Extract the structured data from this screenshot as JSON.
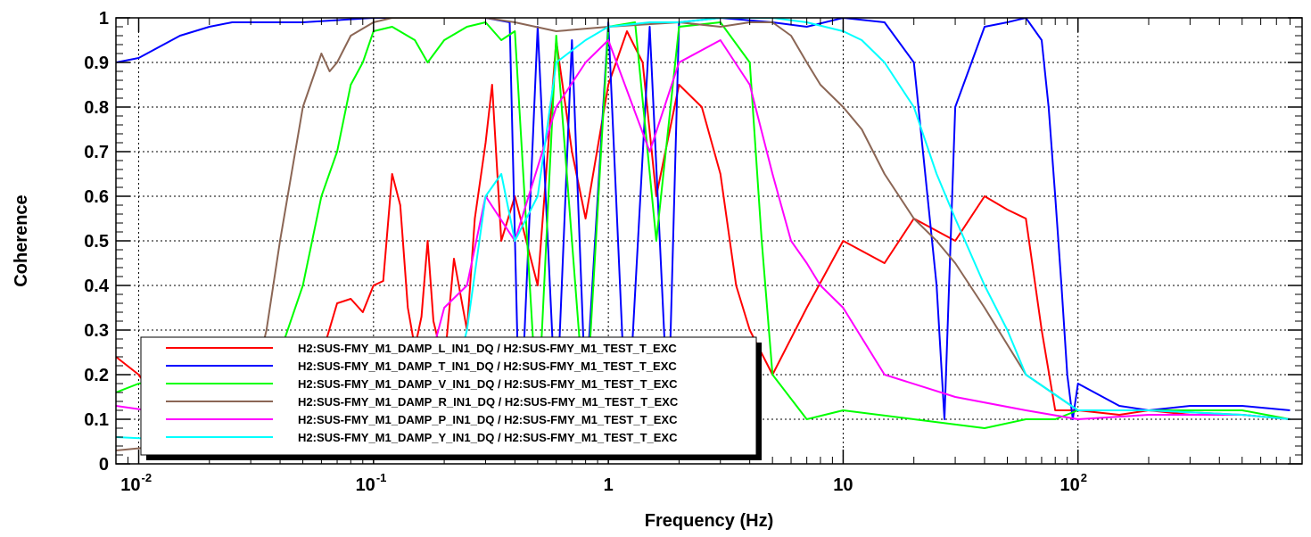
{
  "chart_data": {
    "type": "line",
    "title": "",
    "xlabel": "Frequency (Hz)",
    "ylabel": "Coherence",
    "x_scale": "log",
    "xlim": [
      0.008,
      900
    ],
    "ylim": [
      0,
      1
    ],
    "grid": true,
    "legend_position": "bottom-left",
    "y_ticks": [
      {
        "value": 0,
        "label": "0"
      },
      {
        "value": 0.1,
        "label": "0.1"
      },
      {
        "value": 0.2,
        "label": "0.2"
      },
      {
        "value": 0.3,
        "label": "0.3"
      },
      {
        "value": 0.4,
        "label": "0.4"
      },
      {
        "value": 0.5,
        "label": "0.5"
      },
      {
        "value": 0.6,
        "label": "0.6"
      },
      {
        "value": 0.7,
        "label": "0.7"
      },
      {
        "value": 0.8,
        "label": "0.8"
      },
      {
        "value": 0.9,
        "label": "0.9"
      },
      {
        "value": 1,
        "label": "1"
      }
    ],
    "x_ticks": [
      {
        "value": 0.01,
        "base": "10",
        "exp": "-2"
      },
      {
        "value": 0.1,
        "base": "10",
        "exp": "-1"
      },
      {
        "value": 1,
        "base": "1",
        "exp": ""
      },
      {
        "value": 10,
        "base": "10",
        "exp": ""
      },
      {
        "value": 100,
        "base": "10",
        "exp": "2"
      }
    ],
    "series": [
      {
        "name": "H2:SUS-FMY_M1_DAMP_L_IN1_DQ / H2:SUS-FMY_M1_TEST_T_EXC",
        "color": "#ff0000",
        "x": [
          0.008,
          0.01,
          0.012,
          0.015,
          0.02,
          0.03,
          0.05,
          0.07,
          0.08,
          0.09,
          0.1,
          0.11,
          0.12,
          0.13,
          0.14,
          0.15,
          0.16,
          0.17,
          0.18,
          0.2,
          0.22,
          0.25,
          0.27,
          0.3,
          0.32,
          0.35,
          0.4,
          0.5,
          0.6,
          0.7,
          0.8,
          1.0,
          1.2,
          1.4,
          1.6,
          2.0,
          2.5,
          3.0,
          3.5,
          4.0,
          5.0,
          7.0,
          10,
          15,
          20,
          30,
          40,
          50,
          60,
          70,
          80,
          100,
          150,
          200,
          300,
          500,
          800
        ],
        "y": [
          0.24,
          0.2,
          0.14,
          0.1,
          0.05,
          0.03,
          0.1,
          0.36,
          0.37,
          0.34,
          0.4,
          0.41,
          0.65,
          0.58,
          0.35,
          0.26,
          0.33,
          0.5,
          0.32,
          0.22,
          0.46,
          0.3,
          0.55,
          0.72,
          0.85,
          0.5,
          0.6,
          0.4,
          0.95,
          0.7,
          0.55,
          0.85,
          0.97,
          0.9,
          0.6,
          0.85,
          0.8,
          0.65,
          0.4,
          0.3,
          0.2,
          0.35,
          0.5,
          0.45,
          0.55,
          0.5,
          0.6,
          0.57,
          0.55,
          0.3,
          0.12,
          0.12,
          0.11,
          0.12,
          0.11,
          0.11,
          0.1
        ]
      },
      {
        "name": "H2:SUS-FMY_M1_DAMP_T_IN1_DQ / H2:SUS-FMY_M1_TEST_T_EXC",
        "color": "#0000ff",
        "x": [
          0.008,
          0.01,
          0.015,
          0.02,
          0.025,
          0.03,
          0.05,
          0.1,
          0.2,
          0.3,
          0.38,
          0.42,
          0.5,
          0.6,
          0.7,
          0.8,
          1.0,
          1.2,
          1.5,
          1.8,
          2.0,
          3.0,
          5.0,
          7.0,
          10,
          15,
          20,
          25,
          27,
          30,
          40,
          50,
          60,
          70,
          75,
          80,
          85,
          90,
          95,
          100,
          150,
          200,
          300,
          500,
          800
        ],
        "y": [
          0.9,
          0.91,
          0.96,
          0.98,
          0.99,
          0.99,
          0.99,
          1.0,
          1.0,
          1.0,
          0.99,
          0.05,
          0.98,
          0.1,
          0.95,
          0.15,
          0.99,
          0.05,
          0.98,
          0.1,
          0.99,
          1.0,
          0.99,
          0.98,
          1.0,
          0.99,
          0.9,
          0.4,
          0.1,
          0.8,
          0.98,
          0.99,
          1.0,
          0.95,
          0.8,
          0.6,
          0.4,
          0.2,
          0.1,
          0.18,
          0.13,
          0.12,
          0.13,
          0.13,
          0.12
        ]
      },
      {
        "name": "H2:SUS-FMY_M1_DAMP_V_IN1_DQ / H2:SUS-FMY_M1_TEST_T_EXC",
        "color": "#00ff00",
        "x": [
          0.008,
          0.01,
          0.02,
          0.04,
          0.05,
          0.06,
          0.07,
          0.08,
          0.09,
          0.1,
          0.12,
          0.15,
          0.17,
          0.2,
          0.25,
          0.3,
          0.35,
          0.4,
          0.5,
          0.6,
          0.8,
          1.0,
          1.3,
          1.6,
          2.0,
          3.0,
          4.0,
          4.5,
          5.0,
          7.0,
          10,
          20,
          40,
          60,
          80,
          100,
          200,
          500,
          800
        ],
        "y": [
          0.16,
          0.18,
          0.2,
          0.25,
          0.4,
          0.6,
          0.7,
          0.85,
          0.9,
          0.97,
          0.98,
          0.95,
          0.9,
          0.95,
          0.98,
          0.99,
          0.95,
          0.97,
          0.1,
          0.96,
          0.1,
          0.98,
          0.99,
          0.5,
          0.98,
          0.99,
          0.9,
          0.5,
          0.2,
          0.1,
          0.12,
          0.1,
          0.08,
          0.1,
          0.1,
          0.12,
          0.12,
          0.12,
          0.1
        ]
      },
      {
        "name": "H2:SUS-FMY_M1_DAMP_R_IN1_DQ / H2:SUS-FMY_M1_TEST_T_EXC",
        "color": "#8b6655",
        "x": [
          0.008,
          0.02,
          0.03,
          0.035,
          0.04,
          0.05,
          0.06,
          0.065,
          0.07,
          0.08,
          0.1,
          0.12,
          0.15,
          0.2,
          0.3,
          0.4,
          0.6,
          1.0,
          2.0,
          3.0,
          4.0,
          5.0,
          6.0,
          7.0,
          8.0,
          10,
          12,
          15,
          20,
          25,
          30,
          40,
          60,
          100,
          200,
          500,
          800
        ],
        "y": [
          0.03,
          0.05,
          0.15,
          0.3,
          0.5,
          0.8,
          0.92,
          0.88,
          0.9,
          0.96,
          0.99,
          1.0,
          1.0,
          1.0,
          1.0,
          0.99,
          0.97,
          0.98,
          0.99,
          0.98,
          0.99,
          0.99,
          0.96,
          0.9,
          0.85,
          0.8,
          0.75,
          0.65,
          0.55,
          0.5,
          0.45,
          0.35,
          0.2,
          0.12,
          0.12,
          0.11,
          0.1
        ]
      },
      {
        "name": "H2:SUS-FMY_M1_DAMP_P_IN1_DQ / H2:SUS-FMY_M1_TEST_T_EXC",
        "color": "#ff00ff",
        "x": [
          0.008,
          0.02,
          0.05,
          0.1,
          0.15,
          0.2,
          0.25,
          0.3,
          0.4,
          0.6,
          0.8,
          1.0,
          1.5,
          2.0,
          3.0,
          4.0,
          5.0,
          6.0,
          7.0,
          8.0,
          10,
          15,
          30,
          60,
          100,
          200,
          500,
          800
        ],
        "y": [
          0.13,
          0.1,
          0.05,
          0.08,
          0.1,
          0.35,
          0.4,
          0.6,
          0.5,
          0.8,
          0.9,
          0.95,
          0.7,
          0.9,
          0.95,
          0.85,
          0.65,
          0.5,
          0.45,
          0.4,
          0.35,
          0.2,
          0.15,
          0.12,
          0.1,
          0.11,
          0.11,
          0.1
        ]
      },
      {
        "name": "H2:SUS-FMY_M1_DAMP_Y_IN1_DQ / H2:SUS-FMY_M1_TEST_T_EXC",
        "color": "#00ffff",
        "x": [
          0.008,
          0.02,
          0.05,
          0.1,
          0.2,
          0.25,
          0.3,
          0.35,
          0.4,
          0.5,
          0.6,
          0.8,
          1.0,
          1.5,
          2.0,
          3.0,
          4.0,
          5.0,
          7.0,
          10,
          12,
          15,
          20,
          25,
          30,
          40,
          50,
          60,
          100,
          200,
          500,
          800
        ],
        "y": [
          0.06,
          0.05,
          0.03,
          0.02,
          0.1,
          0.3,
          0.6,
          0.65,
          0.5,
          0.6,
          0.9,
          0.95,
          0.98,
          0.99,
          0.99,
          1.0,
          1.0,
          1.0,
          0.99,
          0.97,
          0.95,
          0.9,
          0.8,
          0.65,
          0.55,
          0.4,
          0.3,
          0.2,
          0.12,
          0.12,
          0.11,
          0.1
        ]
      }
    ]
  }
}
